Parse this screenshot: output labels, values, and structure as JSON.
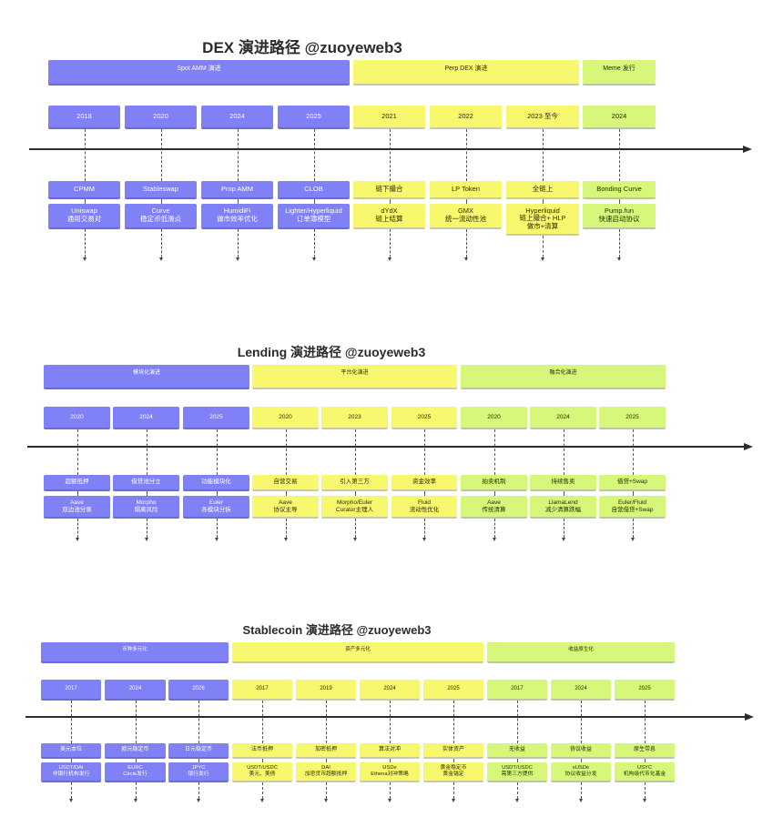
{
  "sections": [
    {
      "id": "dex",
      "title": "DEX 演进路径 @zuoyeweb3",
      "phases": [
        {
          "label": "Spot AMM 演进",
          "color": "purple"
        },
        {
          "label": "Perp DEX 演进",
          "color": "yellow"
        },
        {
          "label": "Meme 发行",
          "color": "green"
        }
      ],
      "items": [
        {
          "year": "2018",
          "tag": "CPMM",
          "detail": "Uniswap\n通用交易对",
          "color": "purple"
        },
        {
          "year": "2020",
          "tag": "Stableswap",
          "detail": "Curve\n稳定币低滑点",
          "color": "purple"
        },
        {
          "year": "2024",
          "tag": "Prop AMM",
          "detail": "HumidiFi\n做市效率优化",
          "color": "purple"
        },
        {
          "year": "2025",
          "tag": "CLOB",
          "detail": "Lighter/Hyperliquid\n订单簿模型",
          "color": "purple"
        },
        {
          "year": "2021",
          "tag": "链下撮合",
          "detail": "dYdX\n链上结算",
          "color": "yellow"
        },
        {
          "year": "2022",
          "tag": "LP Token",
          "detail": "GMX\n统一流动性池",
          "color": "yellow"
        },
        {
          "year": "2023 至今",
          "tag": "全链上",
          "detail": "Hyperliquid\n链上撮合+ HLP\n做市+清算",
          "color": "yellow"
        },
        {
          "year": "2024",
          "tag": "Bonding Curve",
          "detail": "Pump.fun\n快速启动协议",
          "color": "green"
        }
      ]
    },
    {
      "id": "lending",
      "title": "Lending 演进路径 @zuoyeweb3",
      "phases": [
        {
          "label": "模块化演进",
          "color": "purple"
        },
        {
          "label": "平台化演进",
          "color": "yellow"
        },
        {
          "label": "融合化演进",
          "color": "green"
        }
      ],
      "items": [
        {
          "year": "2020",
          "tag": "超额抵押",
          "detail": "Aave\n双边池分离",
          "color": "purple"
        },
        {
          "year": "2024",
          "tag": "借贷池分立",
          "detail": "Morpho\n隔离风险",
          "color": "purple"
        },
        {
          "year": "2025",
          "tag": "功能模块化",
          "detail": "Euler\n各模块分拆",
          "color": "purple"
        },
        {
          "year": "2020",
          "tag": "自营交易",
          "detail": "Aave\n协议主导",
          "color": "yellow"
        },
        {
          "year": "2023",
          "tag": "引入第三方",
          "detail": "Morpho/Euler\nCurator主理人",
          "color": "yellow"
        },
        {
          "year": "2025",
          "tag": "资金效率",
          "detail": "Fluid\n流动性优化",
          "color": "yellow"
        },
        {
          "year": "2020",
          "tag": "拍卖机制",
          "detail": "Aave\n传统清算",
          "color": "green"
        },
        {
          "year": "2024",
          "tag": "持续售卖",
          "detail": "LlamaLend\n减少清算跌幅",
          "color": "green"
        },
        {
          "year": "2025",
          "tag": "借贷+Swap",
          "detail": "Euler/Fluid\n自营借贷+Swap",
          "color": "green"
        }
      ]
    },
    {
      "id": "stablecoin",
      "title": "Stablecoin 演进路径 @zuoyeweb3",
      "phases": [
        {
          "label": "币种多元化",
          "color": "purple"
        },
        {
          "label": "资产多元化",
          "color": "yellow"
        },
        {
          "label": "收益原生化",
          "color": "green"
        }
      ],
      "items": [
        {
          "year": "2017",
          "tag": "美元本位",
          "detail": "USDT/DAI\n非银行机构发行",
          "color": "purple"
        },
        {
          "year": "2024",
          "tag": "欧元稳定币",
          "detail": "EURC\nCircle发行",
          "color": "purple"
        },
        {
          "year": "2026",
          "tag": "日元稳定币",
          "detail": "JPYC\n银行发行",
          "color": "purple"
        },
        {
          "year": "2017",
          "tag": "法币抵押",
          "detail": "USDT/USDC\n美元、美债",
          "color": "yellow"
        },
        {
          "year": "2019",
          "tag": "加密抵押",
          "detail": "DAI\n加密货币超额抵押",
          "color": "yellow"
        },
        {
          "year": "2024",
          "tag": "算法对冲",
          "detail": "USDe\nEthena对冲策略",
          "color": "yellow"
        },
        {
          "year": "2025",
          "tag": "实体资产",
          "detail": "黄金稳定币\n黄金锚定",
          "color": "yellow"
        },
        {
          "year": "2017",
          "tag": "无收益",
          "detail": "USDT/USDC\n需第三方提供",
          "color": "green"
        },
        {
          "year": "2024",
          "tag": "协议收益",
          "detail": "sUSDe\n协议收益分发",
          "color": "green"
        },
        {
          "year": "2025",
          "tag": "原生带息",
          "detail": "USYC\n机构级代币化基金",
          "color": "green"
        }
      ]
    }
  ],
  "colors": {
    "purple": "#8081f7",
    "yellow": "#f8f86e",
    "green": "#d6f779",
    "axis": "#2c2c2c"
  }
}
